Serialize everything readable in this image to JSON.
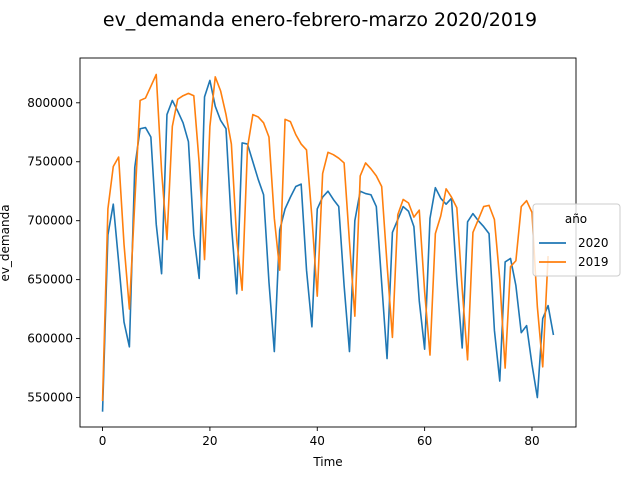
{
  "chart_data": {
    "type": "line",
    "title": "ev_demanda enero-febrero-marzo 2020/2019",
    "xlabel": "Time",
    "ylabel": "ev_demanda",
    "xlim": [
      -4.2,
      88.2
    ],
    "ylim": [
      525000,
      838000
    ],
    "xticks": [
      0,
      20,
      40,
      60,
      80
    ],
    "yticks": [
      550000,
      600000,
      650000,
      700000,
      750000,
      800000
    ],
    "ytick_labels": [
      "550000",
      "600000",
      "650000",
      "700000",
      "750000",
      "800000"
    ],
    "grid": false,
    "legend": {
      "title": "año",
      "placement": "right (outside plot)"
    },
    "series": [
      {
        "name": "2020",
        "color": "#1f77b4",
        "values": [
          538000,
          688000,
          714000,
          665000,
          614000,
          593000,
          745000,
          778000,
          779000,
          771000,
          697000,
          655000,
          790000,
          802000,
          793000,
          783000,
          767000,
          688000,
          651000,
          805000,
          819000,
          797000,
          785000,
          778000,
          697000,
          638000,
          766000,
          765000,
          750000,
          735000,
          722000,
          648000,
          589000,
          692000,
          710000,
          720000,
          729000,
          731000,
          658000,
          610000,
          710000,
          720000,
          725000,
          718000,
          712000,
          645000,
          589000,
          700000,
          725000,
          723000,
          722000,
          712000,
          647000,
          583000,
          690000,
          701000,
          712000,
          708000,
          695000,
          632000,
          591000,
          702000,
          728000,
          719000,
          714000,
          719000,
          650000,
          592000,
          699000,
          706000,
          700000,
          695000,
          689000,
          607000,
          564000,
          665000,
          668000,
          645000,
          605000,
          611000,
          578000,
          550000,
          617000,
          628000,
          603000
        ]
      },
      {
        "name": "2019",
        "color": "#ff7f0e",
        "values": [
          547000,
          710000,
          746000,
          754000,
          680000,
          625000,
          715000,
          802000,
          804000,
          814000,
          824000,
          742000,
          684000,
          780000,
          803000,
          806000,
          808000,
          806000,
          749000,
          667000,
          780000,
          822000,
          810000,
          790000,
          765000,
          684000,
          641000,
          762000,
          790000,
          788000,
          783000,
          771000,
          702000,
          658000,
          786000,
          784000,
          773000,
          765000,
          760000,
          703000,
          636000,
          740000,
          758000,
          756000,
          753000,
          749000,
          682000,
          619000,
          738000,
          749000,
          744000,
          738000,
          729000,
          663000,
          601000,
          705000,
          718000,
          715000,
          703000,
          709000,
          640000,
          586000,
          689000,
          704000,
          727000,
          720000,
          711000,
          642000,
          582000,
          690000,
          701000,
          712000,
          713000,
          701000,
          650000,
          575000,
          661000,
          666000,
          712000,
          717000,
          707000,
          627000,
          576000,
          670000
        ]
      }
    ]
  }
}
